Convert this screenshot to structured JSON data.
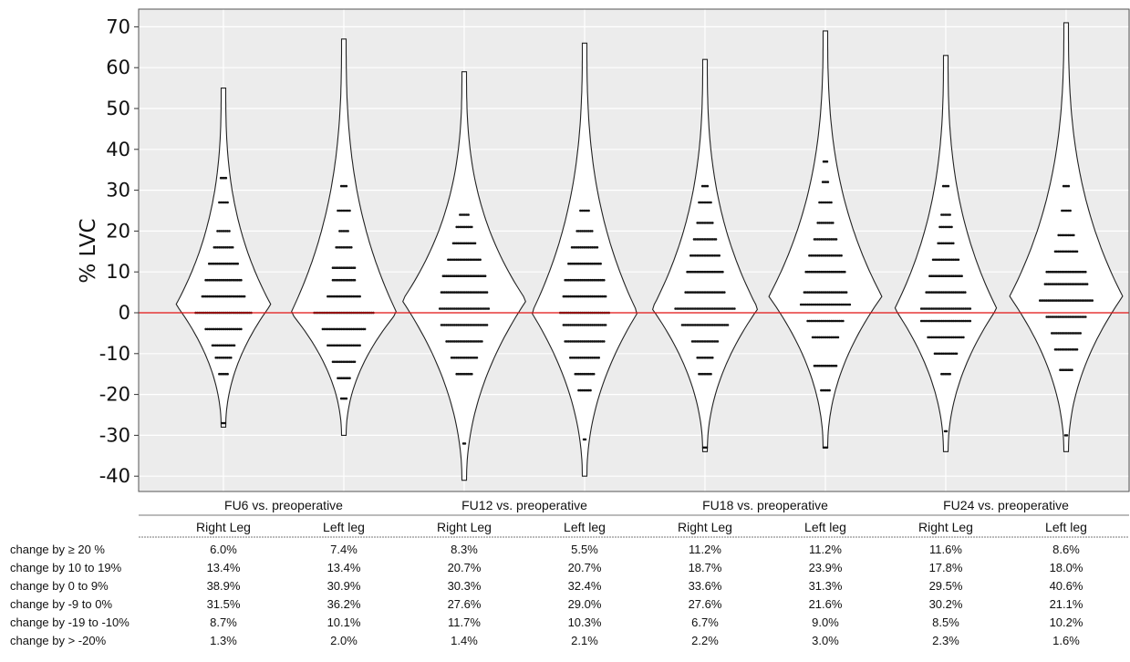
{
  "chart_data": {
    "type": "violin",
    "ylabel": "% LVC",
    "ylim": [
      -42,
      72
    ],
    "yticks": [
      70,
      60,
      50,
      40,
      30,
      20,
      10,
      0,
      -10,
      -20,
      -30,
      -40
    ],
    "grid": true,
    "reference_line": {
      "y": 0,
      "color": "#e01010"
    },
    "groups": [
      {
        "label": "FU6 vs. preoperative"
      },
      {
        "label": "FU12 vs. preoperative"
      },
      {
        "label": "FU18 vs. preoperative"
      },
      {
        "label": "FU24 vs. preoperative"
      }
    ],
    "series": [
      {
        "group": 0,
        "leg": "Right Leg",
        "max": 55,
        "min": -28,
        "mode": 2,
        "width": 52,
        "rows": [
          [
            33,
            4
          ],
          [
            27,
            6
          ],
          [
            20,
            8
          ],
          [
            16,
            12
          ],
          [
            12,
            18
          ],
          [
            8,
            22
          ],
          [
            4,
            26
          ],
          [
            0,
            34
          ],
          [
            -4,
            22
          ],
          [
            -8,
            14
          ],
          [
            -11,
            10
          ],
          [
            -15,
            6
          ],
          [
            -27,
            3
          ]
        ]
      },
      {
        "group": 0,
        "leg": "Left leg",
        "max": 67,
        "min": -30,
        "mode": 0,
        "width": 58,
        "rows": [
          [
            31,
            4
          ],
          [
            25,
            8
          ],
          [
            20,
            6
          ],
          [
            16,
            10
          ],
          [
            11,
            14
          ],
          [
            8,
            14
          ],
          [
            4,
            20
          ],
          [
            0,
            36
          ],
          [
            -4,
            26
          ],
          [
            -8,
            20
          ],
          [
            -12,
            14
          ],
          [
            -16,
            8
          ],
          [
            -21,
            4
          ]
        ]
      },
      {
        "group": 1,
        "leg": "Right Leg",
        "max": 59,
        "min": -41,
        "mode": 3,
        "width": 68,
        "rows": [
          [
            24,
            6
          ],
          [
            21,
            10
          ],
          [
            17,
            14
          ],
          [
            13,
            20
          ],
          [
            9,
            26
          ],
          [
            5,
            28
          ],
          [
            1,
            30
          ],
          [
            -3,
            28
          ],
          [
            -7,
            22
          ],
          [
            -11,
            16
          ],
          [
            -15,
            10
          ],
          [
            -32,
            2
          ]
        ]
      },
      {
        "group": 1,
        "leg": "Left leg",
        "max": 66,
        "min": -40,
        "mode": 0,
        "width": 58,
        "rows": [
          [
            25,
            6
          ],
          [
            20,
            10
          ],
          [
            16,
            16
          ],
          [
            12,
            20
          ],
          [
            8,
            24
          ],
          [
            4,
            26
          ],
          [
            0,
            30
          ],
          [
            -3,
            26
          ],
          [
            -7,
            24
          ],
          [
            -11,
            18
          ],
          [
            -15,
            12
          ],
          [
            -19,
            8
          ],
          [
            -31,
            2
          ]
        ]
      },
      {
        "group": 2,
        "leg": "Right Leg",
        "max": 62,
        "min": -34,
        "mode": 1,
        "width": 58,
        "rows": [
          [
            31,
            4
          ],
          [
            27,
            8
          ],
          [
            22,
            10
          ],
          [
            18,
            14
          ],
          [
            14,
            18
          ],
          [
            10,
            22
          ],
          [
            5,
            24
          ],
          [
            1,
            36
          ],
          [
            -3,
            28
          ],
          [
            -7,
            16
          ],
          [
            -11,
            10
          ],
          [
            -15,
            8
          ],
          [
            -33,
            3
          ]
        ]
      },
      {
        "group": 2,
        "leg": "Left leg",
        "max": 69,
        "min": -33,
        "mode": 4,
        "width": 62,
        "rows": [
          [
            37,
            3
          ],
          [
            32,
            4
          ],
          [
            27,
            8
          ],
          [
            22,
            10
          ],
          [
            18,
            14
          ],
          [
            14,
            20
          ],
          [
            10,
            24
          ],
          [
            5,
            26
          ],
          [
            2,
            30
          ],
          [
            -2,
            22
          ],
          [
            -6,
            16
          ],
          [
            -13,
            14
          ],
          [
            -19,
            6
          ],
          [
            -33,
            3
          ]
        ]
      },
      {
        "group": 3,
        "leg": "Right Leg",
        "max": 63,
        "min": -34,
        "mode": 1,
        "width": 56,
        "rows": [
          [
            31,
            4
          ],
          [
            24,
            6
          ],
          [
            21,
            8
          ],
          [
            17,
            10
          ],
          [
            13,
            16
          ],
          [
            9,
            20
          ],
          [
            5,
            24
          ],
          [
            1,
            30
          ],
          [
            -2,
            30
          ],
          [
            -6,
            22
          ],
          [
            -10,
            14
          ],
          [
            -15,
            6
          ],
          [
            -29,
            2
          ]
        ]
      },
      {
        "group": 3,
        "leg": "Left leg",
        "max": 71,
        "min": -34,
        "mode": 4,
        "width": 62,
        "rows": [
          [
            31,
            4
          ],
          [
            25,
            6
          ],
          [
            19,
            10
          ],
          [
            15,
            14
          ],
          [
            10,
            24
          ],
          [
            7,
            26
          ],
          [
            3,
            32
          ],
          [
            -1,
            24
          ],
          [
            -5,
            18
          ],
          [
            -9,
            14
          ],
          [
            -14,
            8
          ],
          [
            -30,
            2
          ]
        ]
      }
    ],
    "table": {
      "columns": [
        "Right Leg",
        "Left leg",
        "Right Leg",
        "Left leg",
        "Right Leg",
        "Left leg",
        "Right Leg",
        "Left leg"
      ],
      "rows": [
        {
          "label": "change by ≥ 20 %",
          "values": [
            "6.0%",
            "7.4%",
            "8.3%",
            "5.5%",
            "11.2%",
            "11.2%",
            "11.6%",
            "8.6%"
          ]
        },
        {
          "label": "change by 10 to 19%",
          "values": [
            "13.4%",
            "13.4%",
            "20.7%",
            "20.7%",
            "18.7%",
            "23.9%",
            "17.8%",
            "18.0%"
          ]
        },
        {
          "label": "change by 0 to 9%",
          "values": [
            "38.9%",
            "30.9%",
            "30.3%",
            "32.4%",
            "33.6%",
            "31.3%",
            "29.5%",
            "40.6%"
          ]
        },
        {
          "label": "change by -9 to 0%",
          "values": [
            "31.5%",
            "36.2%",
            "27.6%",
            "29.0%",
            "27.6%",
            "21.6%",
            "30.2%",
            "21.1%"
          ]
        },
        {
          "label": "change by -19 to -10%",
          "values": [
            "8.7%",
            "10.1%",
            "11.7%",
            "10.3%",
            "6.7%",
            "9.0%",
            "8.5%",
            "10.2%"
          ]
        },
        {
          "label": "change by > -20%",
          "values": [
            "1.3%",
            "2.0%",
            "1.4%",
            "2.1%",
            "2.2%",
            "3.0%",
            "2.3%",
            "1.6%"
          ]
        }
      ]
    }
  },
  "colors": {
    "plot_bg": "#ececec",
    "grid": "#ffffff",
    "violin_fill": "#ffffff",
    "violin_stroke": "#222222",
    "dots": "#111111",
    "zero_line": "#e01010"
  }
}
